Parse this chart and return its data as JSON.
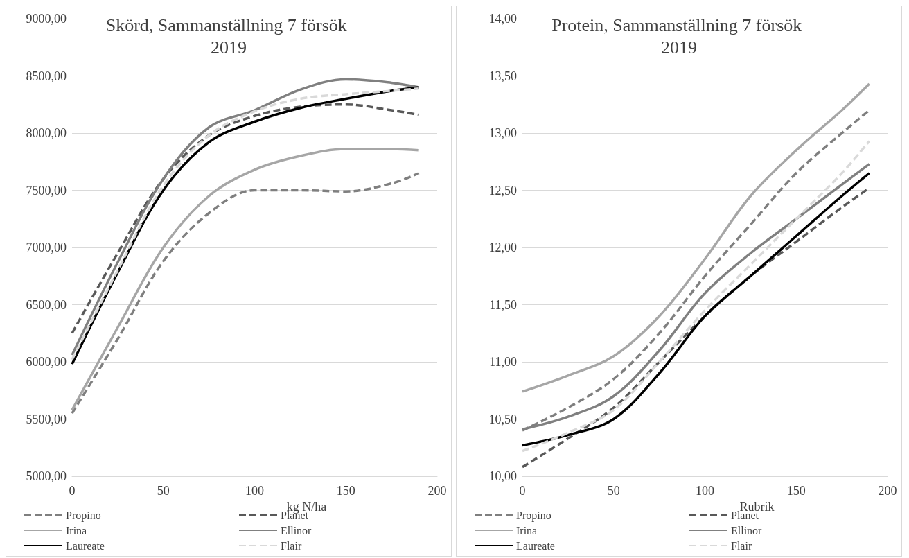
{
  "chart_data": [
    {
      "type": "line",
      "title": "Skörd, Sammanställning 7 försök 2019",
      "xlabel": "kg N/ha",
      "x": [
        0,
        25,
        50,
        75,
        100,
        125,
        150,
        175,
        190
      ],
      "xlim": [
        0,
        200
      ],
      "xticks": [
        0,
        50,
        100,
        150,
        200
      ],
      "ylim": [
        5000,
        9000
      ],
      "yticks": [
        {
          "value": 5000,
          "label": "5000,00"
        },
        {
          "value": 5500,
          "label": "5500,00"
        },
        {
          "value": 6000,
          "label": "6000,00"
        },
        {
          "value": 6500,
          "label": "6500,00"
        },
        {
          "value": 7000,
          "label": "7000,00"
        },
        {
          "value": 7500,
          "label": "7500,00"
        },
        {
          "value": 8000,
          "label": "8000,00"
        },
        {
          "value": 8500,
          "label": "8500,00"
        },
        {
          "value": 9000,
          "label": "9000,00"
        }
      ],
      "grid": "y",
      "legend": "bottom",
      "marker": "none",
      "series": [
        {
          "name": "Propino",
          "color": "#7f7f7f",
          "line_style": "dashed",
          "values": [
            5550,
            6200,
            6880,
            7300,
            7500,
            7500,
            7490,
            7560,
            7650
          ]
        },
        {
          "name": "Planet",
          "color": "#595959",
          "line_style": "dashed",
          "values": [
            6250,
            6950,
            7600,
            7980,
            8150,
            8230,
            8250,
            8200,
            8160
          ]
        },
        {
          "name": "Irina",
          "color": "#a6a6a6",
          "line_style": "solid",
          "values": [
            5580,
            6300,
            7000,
            7450,
            7680,
            7800,
            7860,
            7860,
            7850
          ]
        },
        {
          "name": "Ellinor",
          "color": "#808080",
          "line_style": "solid",
          "values": [
            6060,
            6870,
            7600,
            8050,
            8200,
            8380,
            8470,
            8440,
            8400
          ]
        },
        {
          "name": "Laureate",
          "color": "#000000",
          "line_style": "solid",
          "values": [
            5980,
            6780,
            7500,
            7920,
            8100,
            8220,
            8300,
            8370,
            8400
          ]
        },
        {
          "name": "Flair",
          "color": "#d9d9d9",
          "line_style": "dashed",
          "values": [
            6020,
            6800,
            7540,
            7980,
            8190,
            8300,
            8340,
            8370,
            8390
          ]
        }
      ]
    },
    {
      "type": "line",
      "title": "Protein, Sammanställning 7 försök 2019",
      "xlabel": "Rubrik",
      "x": [
        0,
        25,
        50,
        75,
        100,
        125,
        150,
        175,
        190
      ],
      "xlim": [
        0,
        200
      ],
      "xticks": [
        0,
        50,
        100,
        150,
        200
      ],
      "ylim": [
        10,
        14
      ],
      "yticks": [
        {
          "value": 10,
          "label": "10,00"
        },
        {
          "value": 10.5,
          "label": "10,50"
        },
        {
          "value": 11,
          "label": "11,00"
        },
        {
          "value": 11.5,
          "label": "11,50"
        },
        {
          "value": 12,
          "label": "12,00"
        },
        {
          "value": 12.5,
          "label": "12,50"
        },
        {
          "value": 13,
          "label": "13,00"
        },
        {
          "value": 13.5,
          "label": "13,50"
        },
        {
          "value": 14,
          "label": "14,00"
        }
      ],
      "grid": "y",
      "legend": "bottom",
      "marker": "none",
      "series": [
        {
          "name": "Propino",
          "color": "#7f7f7f",
          "line_style": "dashed",
          "values": [
            10.4,
            10.6,
            10.85,
            11.25,
            11.75,
            12.2,
            12.65,
            13.0,
            13.2
          ]
        },
        {
          "name": "Planet",
          "color": "#595959",
          "line_style": "dashed",
          "values": [
            10.08,
            10.33,
            10.6,
            11.0,
            11.4,
            11.75,
            12.05,
            12.35,
            12.52
          ]
        },
        {
          "name": "Irina",
          "color": "#a6a6a6",
          "line_style": "solid",
          "values": [
            10.74,
            10.88,
            11.05,
            11.4,
            11.9,
            12.45,
            12.85,
            13.2,
            13.43
          ]
        },
        {
          "name": "Ellinor",
          "color": "#808080",
          "line_style": "solid",
          "values": [
            10.41,
            10.52,
            10.7,
            11.1,
            11.6,
            11.95,
            12.25,
            12.55,
            12.73
          ]
        },
        {
          "name": "Laureate",
          "color": "#000000",
          "line_style": "solid",
          "values": [
            10.27,
            10.36,
            10.5,
            10.9,
            11.4,
            11.75,
            12.1,
            12.45,
            12.65
          ]
        },
        {
          "name": "Flair",
          "color": "#d9d9d9",
          "line_style": "dashed",
          "values": [
            10.22,
            10.38,
            10.58,
            11.0,
            11.45,
            11.85,
            12.25,
            12.65,
            12.93
          ]
        }
      ]
    }
  ]
}
